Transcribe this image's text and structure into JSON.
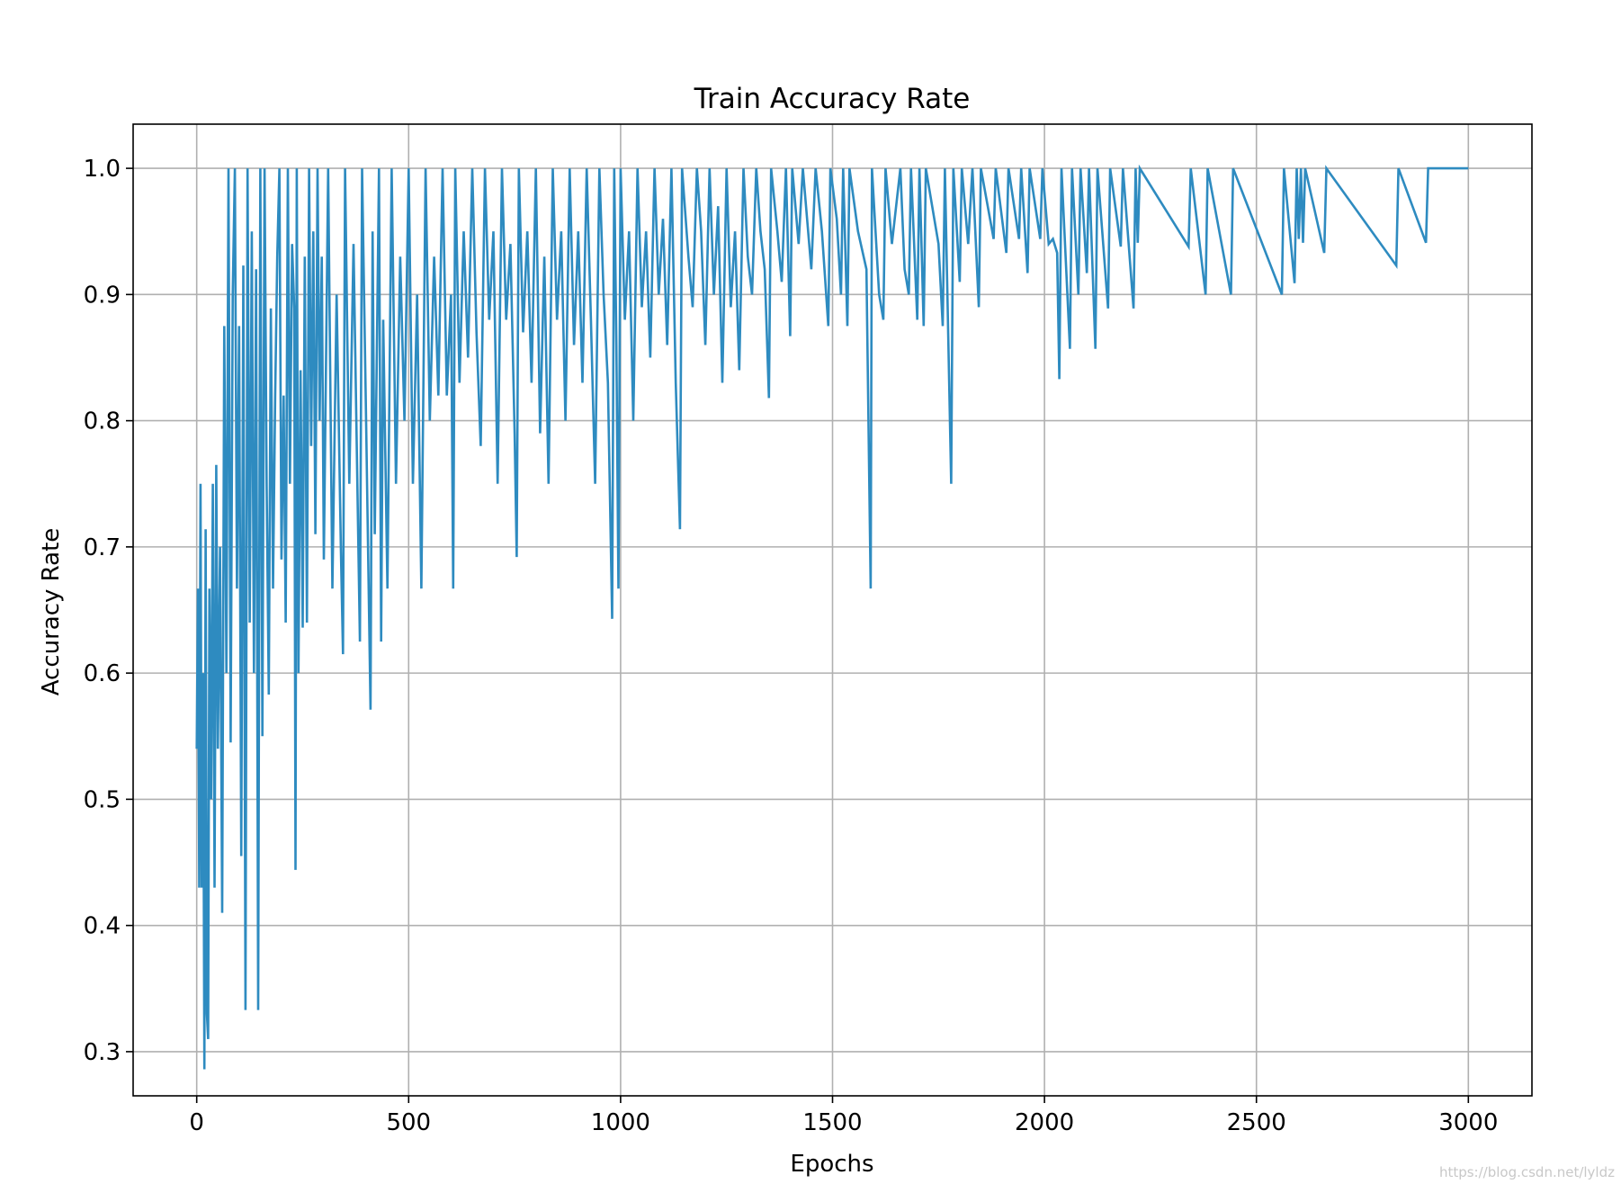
{
  "chart_data": {
    "type": "line",
    "title": "Train Accuracy Rate",
    "xlabel": "Epochs",
    "ylabel": "Accuracy Rate",
    "xlim": [
      -150,
      3150
    ],
    "ylim": [
      0.265,
      1.035
    ],
    "xticks": [
      0,
      500,
      1000,
      1500,
      2000,
      2500,
      3000
    ],
    "xtick_labels": [
      "0",
      "500",
      "1000",
      "1500",
      "2000",
      "2500",
      "3000"
    ],
    "yticks": [
      0.3,
      0.4,
      0.5,
      0.6,
      0.7,
      0.8,
      0.9,
      1.0
    ],
    "ytick_labels": [
      "0.3",
      "0.4",
      "0.5",
      "0.6",
      "0.7",
      "0.8",
      "0.9",
      "1.0"
    ],
    "grid": true,
    "line_color": "#2e8bc0",
    "series": [
      {
        "name": "",
        "points": [
          [
            0,
            0.54
          ],
          [
            3,
            0.667
          ],
          [
            6,
            0.43
          ],
          [
            9,
            0.75
          ],
          [
            12,
            0.43
          ],
          [
            15,
            0.6
          ],
          [
            18,
            0.286
          ],
          [
            21,
            0.714
          ],
          [
            24,
            0.33
          ],
          [
            27,
            0.31
          ],
          [
            30,
            0.667
          ],
          [
            34,
            0.5
          ],
          [
            38,
            0.75
          ],
          [
            42,
            0.43
          ],
          [
            46,
            0.765
          ],
          [
            50,
            0.54
          ],
          [
            55,
            0.7
          ],
          [
            60,
            0.41
          ],
          [
            65,
            0.875
          ],
          [
            70,
            0.6
          ],
          [
            75,
            1.0
          ],
          [
            80,
            0.545
          ],
          [
            85,
            0.9
          ],
          [
            90,
            1.0
          ],
          [
            95,
            0.667
          ],
          [
            100,
            0.875
          ],
          [
            105,
            0.455
          ],
          [
            110,
            0.923
          ],
          [
            115,
            0.333
          ],
          [
            120,
            1.0
          ],
          [
            125,
            0.64
          ],
          [
            130,
            0.95
          ],
          [
            135,
            0.6
          ],
          [
            140,
            0.92
          ],
          [
            145,
            0.333
          ],
          [
            150,
            1.0
          ],
          [
            155,
            0.55
          ],
          [
            160,
            1.0
          ],
          [
            165,
            0.75
          ],
          [
            170,
            0.583
          ],
          [
            175,
            0.889
          ],
          [
            180,
            0.667
          ],
          [
            185,
            0.82
          ],
          [
            190,
            0.93
          ],
          [
            195,
            1.0
          ],
          [
            200,
            0.69
          ],
          [
            205,
            0.82
          ],
          [
            210,
            0.64
          ],
          [
            215,
            1.0
          ],
          [
            220,
            0.75
          ],
          [
            225,
            0.94
          ],
          [
            230,
            0.889
          ],
          [
            233,
            0.444
          ],
          [
            236,
            1.0
          ],
          [
            240,
            0.6
          ],
          [
            245,
            0.84
          ],
          [
            250,
            0.636
          ],
          [
            255,
            0.93
          ],
          [
            260,
            0.64
          ],
          [
            265,
            1.0
          ],
          [
            270,
            0.78
          ],
          [
            275,
            0.95
          ],
          [
            280,
            0.71
          ],
          [
            285,
            1.0
          ],
          [
            290,
            0.8
          ],
          [
            295,
            0.93
          ],
          [
            300,
            0.69
          ],
          [
            310,
            1.0
          ],
          [
            320,
            0.667
          ],
          [
            330,
            0.9
          ],
          [
            340,
            0.7
          ],
          [
            345,
            0.615
          ],
          [
            350,
            1.0
          ],
          [
            360,
            0.75
          ],
          [
            370,
            0.94
          ],
          [
            380,
            0.73
          ],
          [
            385,
            0.625
          ],
          [
            390,
            1.0
          ],
          [
            400,
            0.79
          ],
          [
            410,
            0.571
          ],
          [
            415,
            0.95
          ],
          [
            420,
            0.71
          ],
          [
            430,
            1.0
          ],
          [
            435,
            0.625
          ],
          [
            440,
            0.88
          ],
          [
            450,
            0.667
          ],
          [
            460,
            1.0
          ],
          [
            470,
            0.75
          ],
          [
            480,
            0.93
          ],
          [
            490,
            0.8
          ],
          [
            500,
            1.0
          ],
          [
            510,
            0.75
          ],
          [
            520,
            0.9
          ],
          [
            530,
            0.667
          ],
          [
            540,
            1.0
          ],
          [
            550,
            0.8
          ],
          [
            560,
            0.93
          ],
          [
            570,
            0.82
          ],
          [
            580,
            1.0
          ],
          [
            590,
            0.82
          ],
          [
            600,
            0.9
          ],
          [
            605,
            0.667
          ],
          [
            610,
            1.0
          ],
          [
            620,
            0.83
          ],
          [
            630,
            0.95
          ],
          [
            640,
            0.85
          ],
          [
            650,
            1.0
          ],
          [
            660,
            0.87
          ],
          [
            670,
            0.78
          ],
          [
            680,
            1.0
          ],
          [
            690,
            0.88
          ],
          [
            700,
            0.95
          ],
          [
            710,
            0.75
          ],
          [
            720,
            1.0
          ],
          [
            730,
            0.88
          ],
          [
            740,
            0.94
          ],
          [
            750,
            0.79
          ],
          [
            755,
            0.692
          ],
          [
            760,
            1.0
          ],
          [
            770,
            0.87
          ],
          [
            780,
            0.95
          ],
          [
            790,
            0.83
          ],
          [
            800,
            1.0
          ],
          [
            810,
            0.79
          ],
          [
            820,
            0.93
          ],
          [
            830,
            0.75
          ],
          [
            840,
            1.0
          ],
          [
            850,
            0.88
          ],
          [
            860,
            0.95
          ],
          [
            870,
            0.8
          ],
          [
            880,
            1.0
          ],
          [
            890,
            0.86
          ],
          [
            900,
            0.95
          ],
          [
            910,
            0.83
          ],
          [
            920,
            1.0
          ],
          [
            930,
            0.88
          ],
          [
            940,
            0.75
          ],
          [
            950,
            1.0
          ],
          [
            960,
            0.9
          ],
          [
            970,
            0.83
          ],
          [
            980,
            0.643
          ],
          [
            985,
            1.0
          ],
          [
            990,
            0.86
          ],
          [
            995,
            0.667
          ],
          [
            1000,
            1.0
          ],
          [
            1010,
            0.88
          ],
          [
            1020,
            0.95
          ],
          [
            1030,
            0.8
          ],
          [
            1040,
            1.0
          ],
          [
            1050,
            0.89
          ],
          [
            1060,
            0.95
          ],
          [
            1070,
            0.85
          ],
          [
            1080,
            1.0
          ],
          [
            1090,
            0.9
          ],
          [
            1100,
            0.96
          ],
          [
            1110,
            0.86
          ],
          [
            1120,
            1.0
          ],
          [
            1130,
            0.83
          ],
          [
            1140,
            0.714
          ],
          [
            1145,
            1.0
          ],
          [
            1160,
            0.93
          ],
          [
            1170,
            0.89
          ],
          [
            1180,
            1.0
          ],
          [
            1190,
            0.95
          ],
          [
            1200,
            0.86
          ],
          [
            1210,
            1.0
          ],
          [
            1220,
            0.9
          ],
          [
            1230,
            0.97
          ],
          [
            1240,
            0.83
          ],
          [
            1250,
            1.0
          ],
          [
            1260,
            0.89
          ],
          [
            1270,
            0.95
          ],
          [
            1280,
            0.84
          ],
          [
            1290,
            1.0
          ],
          [
            1300,
            0.93
          ],
          [
            1310,
            0.9
          ],
          [
            1320,
            1.0
          ],
          [
            1330,
            0.95
          ],
          [
            1340,
            0.92
          ],
          [
            1350,
            0.818
          ],
          [
            1355,
            1.0
          ],
          [
            1370,
            0.95
          ],
          [
            1380,
            0.91
          ],
          [
            1390,
            1.0
          ],
          [
            1400,
            0.867
          ],
          [
            1405,
            1.0
          ],
          [
            1420,
            0.94
          ],
          [
            1430,
            1.0
          ],
          [
            1450,
            0.92
          ],
          [
            1460,
            1.0
          ],
          [
            1475,
            0.95
          ],
          [
            1490,
            0.875
          ],
          [
            1495,
            1.0
          ],
          [
            1510,
            0.96
          ],
          [
            1520,
            0.9
          ],
          [
            1525,
            1.0
          ],
          [
            1535,
            0.875
          ],
          [
            1540,
            1.0
          ],
          [
            1560,
            0.95
          ],
          [
            1580,
            0.92
          ],
          [
            1590,
            0.667
          ],
          [
            1593,
            1.0
          ],
          [
            1610,
            0.9
          ],
          [
            1620,
            0.88
          ],
          [
            1625,
            1.0
          ],
          [
            1640,
            0.94
          ],
          [
            1660,
            1.0
          ],
          [
            1670,
            0.92
          ],
          [
            1680,
            0.9
          ],
          [
            1685,
            1.0
          ],
          [
            1700,
            0.88
          ],
          [
            1705,
            1.0
          ],
          [
            1715,
            0.875
          ],
          [
            1720,
            1.0
          ],
          [
            1750,
            0.94
          ],
          [
            1760,
            0.875
          ],
          [
            1765,
            1.0
          ],
          [
            1780,
            0.75
          ],
          [
            1785,
            1.0
          ],
          [
            1800,
            0.91
          ],
          [
            1805,
            1.0
          ],
          [
            1820,
            0.94
          ],
          [
            1830,
            1.0
          ],
          [
            1845,
            0.89
          ],
          [
            1850,
            1.0
          ],
          [
            1880,
            0.944
          ],
          [
            1885,
            1.0
          ],
          [
            1910,
            0.933
          ],
          [
            1915,
            1.0
          ],
          [
            1940,
            0.944
          ],
          [
            1945,
            1.0
          ],
          [
            1960,
            0.917
          ],
          [
            1965,
            1.0
          ],
          [
            1990,
            0.944
          ],
          [
            1995,
            1.0
          ],
          [
            2010,
            0.94
          ],
          [
            2020,
            0.944
          ],
          [
            2030,
            0.933
          ],
          [
            2035,
            0.833
          ],
          [
            2040,
            1.0
          ],
          [
            2060,
            0.857
          ],
          [
            2065,
            1.0
          ],
          [
            2080,
            0.9
          ],
          [
            2085,
            1.0
          ],
          [
            2100,
            0.917
          ],
          [
            2105,
            1.0
          ],
          [
            2120,
            0.857
          ],
          [
            2125,
            1.0
          ],
          [
            2150,
            0.889
          ],
          [
            2155,
            1.0
          ],
          [
            2180,
            0.938
          ],
          [
            2185,
            1.0
          ],
          [
            2210,
            0.889
          ],
          [
            2215,
            1.0
          ],
          [
            2220,
            0.941
          ],
          [
            2225,
            1.0
          ],
          [
            2340,
            0.938
          ],
          [
            2345,
            1.0
          ],
          [
            2380,
            0.9
          ],
          [
            2385,
            1.0
          ],
          [
            2440,
            0.9
          ],
          [
            2445,
            1.0
          ],
          [
            2560,
            0.9
          ],
          [
            2565,
            1.0
          ],
          [
            2590,
            0.909
          ],
          [
            2595,
            1.0
          ],
          [
            2600,
            0.944
          ],
          [
            2605,
            1.0
          ],
          [
            2610,
            0.941
          ],
          [
            2615,
            1.0
          ],
          [
            2660,
            0.933
          ],
          [
            2665,
            1.0
          ],
          [
            2830,
            0.923
          ],
          [
            2835,
            1.0
          ],
          [
            2900,
            0.941
          ],
          [
            2905,
            1.0
          ],
          [
            3000,
            1.0
          ]
        ]
      }
    ]
  },
  "watermark": "https://blog.csdn.net/lyldz"
}
